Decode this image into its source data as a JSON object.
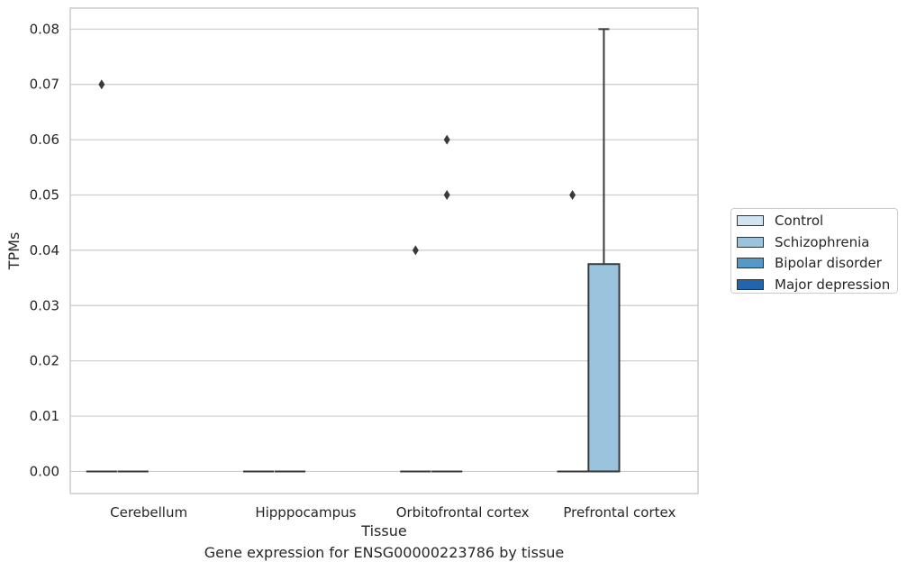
{
  "chart_data": {
    "type": "box",
    "xlabel": "Tissue",
    "ylabel": "TPMs",
    "caption": "Gene expression for ENSG00000223786 by tissue",
    "ylim": [
      -0.004,
      0.0838
    ],
    "yticks": [
      "0.00",
      "0.01",
      "0.02",
      "0.03",
      "0.04",
      "0.05",
      "0.06",
      "0.07",
      "0.08"
    ],
    "categories": [
      "Cerebellum",
      "Hipppocampus",
      "Orbitofrontal cortex",
      "Prefrontal cortex"
    ],
    "grid": true,
    "legend_position": "right",
    "series": [
      {
        "name": "Control",
        "color": "#d1e2f0"
      },
      {
        "name": "Schizophrenia",
        "color": "#9ac4dd"
      },
      {
        "name": "Bipolar disorder",
        "color": "#5599c6"
      },
      {
        "name": "Major depression",
        "color": "#2166ac"
      }
    ],
    "boxes": [
      {
        "category": "Cerebellum",
        "series": "Control",
        "q1": 0,
        "median": 0,
        "q3": 0,
        "whislo": 0,
        "whishi": 0,
        "fliers": [
          0.07
        ]
      },
      {
        "category": "Cerebellum",
        "series": "Schizophrenia",
        "q1": 0,
        "median": 0,
        "q3": 0,
        "whislo": 0,
        "whishi": 0,
        "fliers": []
      },
      {
        "category": "Hipppocampus",
        "series": "Control",
        "q1": 0,
        "median": 0,
        "q3": 0,
        "whislo": 0,
        "whishi": 0,
        "fliers": []
      },
      {
        "category": "Hipppocampus",
        "series": "Schizophrenia",
        "q1": 0,
        "median": 0,
        "q3": 0,
        "whislo": 0,
        "whishi": 0,
        "fliers": []
      },
      {
        "category": "Orbitofrontal cortex",
        "series": "Control",
        "q1": 0,
        "median": 0,
        "q3": 0,
        "whislo": 0,
        "whishi": 0,
        "fliers": [
          0.04
        ]
      },
      {
        "category": "Orbitofrontal cortex",
        "series": "Schizophrenia",
        "q1": 0,
        "median": 0,
        "q3": 0,
        "whislo": 0,
        "whishi": 0,
        "fliers": [
          0.05,
          0.06
        ]
      },
      {
        "category": "Prefrontal cortex",
        "series": "Control",
        "q1": 0,
        "median": 0,
        "q3": 0,
        "whislo": 0,
        "whishi": 0,
        "fliers": [
          0.05
        ]
      },
      {
        "category": "Prefrontal cortex",
        "series": "Schizophrenia",
        "q1": 0,
        "median": 0,
        "q3": 0.0375,
        "whislo": 0,
        "whishi": 0.08,
        "fliers": []
      }
    ]
  }
}
